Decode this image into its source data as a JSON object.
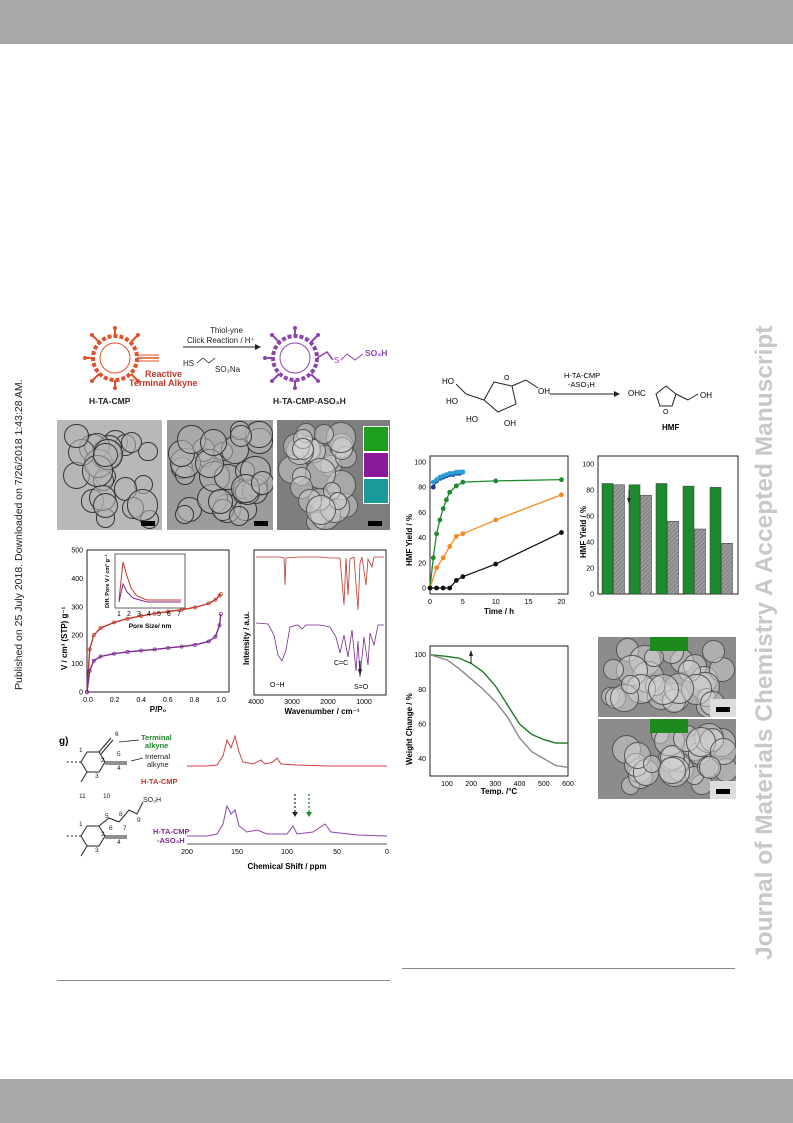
{
  "header": {
    "publish_note": "Published on 25 July 2018. Downloaded on 7/26/2018 1:43:28 AM."
  },
  "watermark": {
    "text": "Journal of Materials Chemistry A Accepted Manuscript"
  },
  "scheme": {
    "reagent_top": "Thiol-yne",
    "reagent_mid": "Click Reaction / H⁺",
    "thiol": "HS",
    "thiol_tail": "SO₃Na",
    "reactive_label_1": "Reactive",
    "reactive_label_2": "Terminal Alkyne",
    "left_name": "H-TA-CMP",
    "right_name": "H-TA-CMP-ASO₃H",
    "sulfonic": "SO₃H",
    "s_atom": "S"
  },
  "isotherm": {
    "ylabel": "V / cm³ (STP) g⁻¹",
    "xlabel": "P/P₀",
    "yticks": [
      "0",
      "100",
      "200",
      "300",
      "400",
      "500"
    ],
    "xticks": [
      "0.0",
      "0.2",
      "0.4",
      "0.6",
      "0.8",
      "1.0"
    ],
    "inset_ylabel": "Diff. Pore V / cm³ g⁻¹",
    "inset_xlabel": "Pore Size/ nm",
    "inset_xticks": [
      "1",
      "2",
      "3",
      "4",
      "5",
      "6",
      "7"
    ]
  },
  "ftir": {
    "ylabel": "Intensity / a.u.",
    "xlabel": "Wavenumber / cm⁻¹",
    "xticks": [
      "4000",
      "3000",
      "2000",
      "1000"
    ],
    "oh": "O−H",
    "cc": "C=C",
    "so": "S=O"
  },
  "nmr": {
    "panel": "g)",
    "terminal_1": "Terminal",
    "terminal_2": "alkyne",
    "internal_1": "Internal",
    "internal_2": "alkyne",
    "top_name": "H-TA-CMP",
    "bot_name_1": "H-TA-CMP",
    "bot_name_2": "-ASO₃H",
    "so3h": "SO₃H",
    "xlabel": "Chemical Shift / ppm",
    "xticks": [
      "200",
      "150",
      "100",
      "50",
      "0"
    ],
    "atoms_top": [
      "1",
      "2",
      "3",
      "4",
      "5",
      "6"
    ],
    "atoms_bot": [
      "1",
      "2",
      "3",
      "4",
      "5",
      "6",
      "7",
      "8",
      "9",
      "10",
      "11"
    ]
  },
  "reaction": {
    "catalyst_1": "H-TA-CMP",
    "catalyst_2": "-ASO₃H",
    "product": "HMF",
    "cho": "OHC",
    "oh": "OH",
    "ho": "HO"
  },
  "kinetics": {
    "ylabel": "HMF Yield / %",
    "xlabel": "Time / h",
    "yticks": [
      "0",
      "20",
      "40",
      "60",
      "80",
      "100"
    ],
    "xticks": [
      "0",
      "5",
      "10",
      "15",
      "20"
    ]
  },
  "recycle": {
    "ylabel": "HMF Yield / %",
    "yticks": [
      "0",
      "20",
      "40",
      "60",
      "80",
      "100"
    ]
  },
  "tga": {
    "ylabel": "Weight Change / %",
    "xlabel": "Temp. /°C",
    "yticks": [
      "40",
      "60",
      "80",
      "100"
    ],
    "xticks": [
      "100",
      "200",
      "300",
      "400",
      "500",
      "600"
    ]
  },
  "chart_data": [
    {
      "type": "line",
      "title": "",
      "xlabel": "Time / h",
      "ylabel": "HMF Yield / %",
      "xlim": [
        0,
        21
      ],
      "ylim": [
        0,
        100
      ],
      "colors": [
        "#1a3a8f",
        "#2a9fd6",
        "#1e8a2e",
        "#f28c1e",
        "#111111"
      ],
      "series": [
        {
          "x": [
            0.5,
            1,
            1.5,
            2,
            2.5,
            3,
            3.5,
            4,
            4.5,
            5
          ],
          "values": [
            80,
            85,
            87,
            88,
            89,
            90,
            90,
            91,
            91,
            92
          ]
        },
        {
          "x": [
            0.5,
            1,
            1.5,
            2,
            2.5,
            3,
            3.5,
            4,
            4.5,
            5
          ],
          "values": [
            84,
            86,
            88,
            89,
            90,
            91,
            91,
            92,
            92,
            92
          ]
        },
        {
          "x": [
            0,
            0.5,
            1,
            1.5,
            2,
            2.5,
            3,
            4,
            5,
            10,
            20
          ],
          "values": [
            0,
            24,
            43,
            54,
            63,
            70,
            76,
            81,
            84,
            85,
            86
          ]
        },
        {
          "x": [
            0,
            1,
            2,
            3,
            4,
            5,
            10,
            20
          ],
          "values": [
            0,
            16,
            24,
            33,
            41,
            43,
            54,
            74
          ]
        },
        {
          "x": [
            0,
            1,
            2,
            3,
            4,
            5,
            10,
            20
          ],
          "values": [
            0,
            0,
            0,
            0,
            6,
            9,
            19,
            44
          ]
        }
      ]
    },
    {
      "type": "bar",
      "title": "",
      "ylabel": "HMF Yield / %",
      "ylim": [
        0,
        100
      ],
      "categories": [
        "1",
        "2",
        "3",
        "4",
        "5"
      ],
      "colors": [
        "#1e8a2e",
        "#8a8a8a"
      ],
      "series": [
        {
          "values": [
            85,
            84,
            85,
            83,
            82
          ]
        },
        {
          "values": [
            84,
            76,
            56,
            50,
            39
          ]
        }
      ]
    },
    {
      "type": "line",
      "title": "",
      "xlabel": "Temp. /°C",
      "ylabel": "Weight Change / %",
      "xlim": [
        30,
        600
      ],
      "ylim": [
        30,
        105
      ],
      "colors": [
        "#1e7a26",
        "#8a8a8a"
      ],
      "series": [
        {
          "x": [
            30,
            100,
            150,
            200,
            250,
            300,
            350,
            400,
            450,
            500,
            550,
            600
          ],
          "values": [
            100,
            99,
            98,
            95,
            90,
            82,
            71,
            60,
            54,
            51,
            49,
            49
          ]
        },
        {
          "x": [
            30,
            100,
            150,
            200,
            250,
            300,
            350,
            400,
            450,
            500,
            550,
            600
          ],
          "values": [
            100,
            97,
            92,
            86,
            80,
            73,
            64,
            52,
            44,
            40,
            36,
            35
          ]
        }
      ]
    },
    {
      "type": "line",
      "title": "",
      "xlabel": "P/P₀",
      "ylabel": "V / cm³ (STP) g⁻¹",
      "xlim": [
        0,
        1.05
      ],
      "ylim": [
        0,
        500
      ],
      "colors": [
        "#c0392b",
        "#7a2a8f"
      ],
      "series": [
        {
          "x": [
            0,
            0.02,
            0.05,
            0.1,
            0.2,
            0.3,
            0.4,
            0.5,
            0.6,
            0.7,
            0.8,
            0.9,
            0.95,
            0.98,
            0.99
          ],
          "values": [
            0,
            150,
            200,
            225,
            245,
            258,
            268,
            276,
            283,
            290,
            298,
            312,
            325,
            340,
            345
          ]
        },
        {
          "x": [
            0,
            0.02,
            0.05,
            0.1,
            0.2,
            0.3,
            0.4,
            0.5,
            0.6,
            0.7,
            0.8,
            0.9,
            0.95,
            0.98,
            0.99
          ],
          "values": [
            0,
            75,
            110,
            125,
            135,
            141,
            146,
            150,
            155,
            160,
            166,
            178,
            195,
            235,
            275
          ]
        }
      ]
    }
  ]
}
